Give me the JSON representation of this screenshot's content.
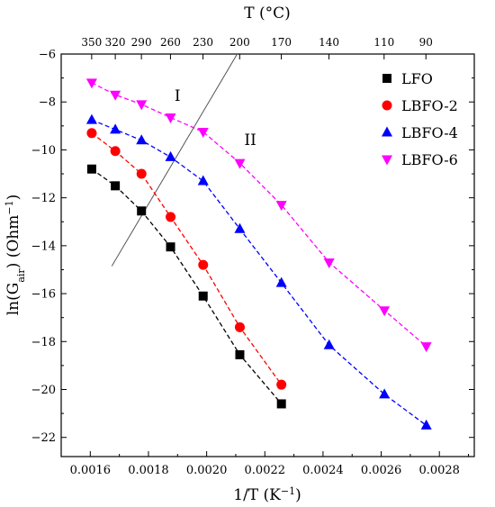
{
  "chart_data": {
    "type": "scatter",
    "x_label": "1/T (K",
    "x_label_sup": "−1",
    "x_label_tail": ")",
    "y_label_pre": "ln(G",
    "y_label_sub": "air",
    "y_label_post": ") (Ohm",
    "y_label_sup": "−1",
    "y_label_tail": ")",
    "top_axis_label": "T (°C)",
    "xlim": [
      0.0015,
      0.00292
    ],
    "ylim": [
      -22.8,
      -6
    ],
    "x_ticks": [
      0.0016,
      0.0018,
      0.002,
      0.0022,
      0.0024,
      0.0026,
      0.0028
    ],
    "x_tick_labels": [
      "0.0016",
      "0.0018",
      "0.0020",
      "0.0022",
      "0.0024",
      "0.0026",
      "0.0028"
    ],
    "y_ticks": [
      -22,
      -20,
      -18,
      -16,
      -14,
      -12,
      -10,
      -8,
      -6
    ],
    "y_tick_labels": [
      "−22",
      "−20",
      "−18",
      "−16",
      "−14",
      "−12",
      "−10",
      "−8",
      "−6"
    ],
    "top_ticks_celsius": [
      350,
      320,
      290,
      260,
      230,
      200,
      170,
      140,
      110,
      90
    ],
    "top_tick_labels": [
      "350",
      "320",
      "290",
      "260",
      "230",
      "200",
      "170",
      "140",
      "110",
      "90"
    ],
    "series": [
      {
        "name": "LFO",
        "marker": "square",
        "color": "#000000",
        "x": [
          0.001605,
          0.001686,
          0.001776,
          0.001876,
          0.001988,
          0.002114,
          0.002257
        ],
        "y": [
          -10.8,
          -11.5,
          -12.55,
          -14.05,
          -16.1,
          -18.55,
          -20.6
        ]
      },
      {
        "name": "LBFO-2",
        "marker": "circle",
        "color": "#ff0000",
        "x": [
          0.001605,
          0.001686,
          0.001776,
          0.001876,
          0.001988,
          0.002114,
          0.002257
        ],
        "y": [
          -9.3,
          -10.05,
          -11.0,
          -12.8,
          -14.8,
          -17.4,
          -19.8
        ]
      },
      {
        "name": "LBFO-4",
        "marker": "triangle-up",
        "color": "#0000ff",
        "x": [
          0.001605,
          0.001686,
          0.001776,
          0.001876,
          0.001988,
          0.002114,
          0.002257,
          0.002421,
          0.002611,
          0.002755
        ],
        "y": [
          -8.75,
          -9.15,
          -9.6,
          -10.3,
          -11.3,
          -13.3,
          -15.55,
          -18.15,
          -20.2,
          -21.5
        ]
      },
      {
        "name": "LBFO-6",
        "marker": "triangle-down",
        "color": "#ff00ff",
        "x": [
          0.001605,
          0.001686,
          0.001776,
          0.001876,
          0.001988,
          0.002114,
          0.002257,
          0.002421,
          0.002611,
          0.002755
        ],
        "y": [
          -7.2,
          -7.7,
          -8.1,
          -8.65,
          -9.25,
          -10.55,
          -12.3,
          -14.7,
          -16.7,
          -18.2
        ]
      }
    ],
    "boundary_line": {
      "x": [
        0.001674,
        0.002105
      ],
      "y": [
        -14.85,
        -6.0
      ]
    },
    "region_labels": [
      {
        "text": "I",
        "x": 0.0019,
        "y": -7.95
      },
      {
        "text": "II",
        "x": 0.00215,
        "y": -9.8
      }
    ],
    "legend_position": "top-right",
    "grid": false
  }
}
